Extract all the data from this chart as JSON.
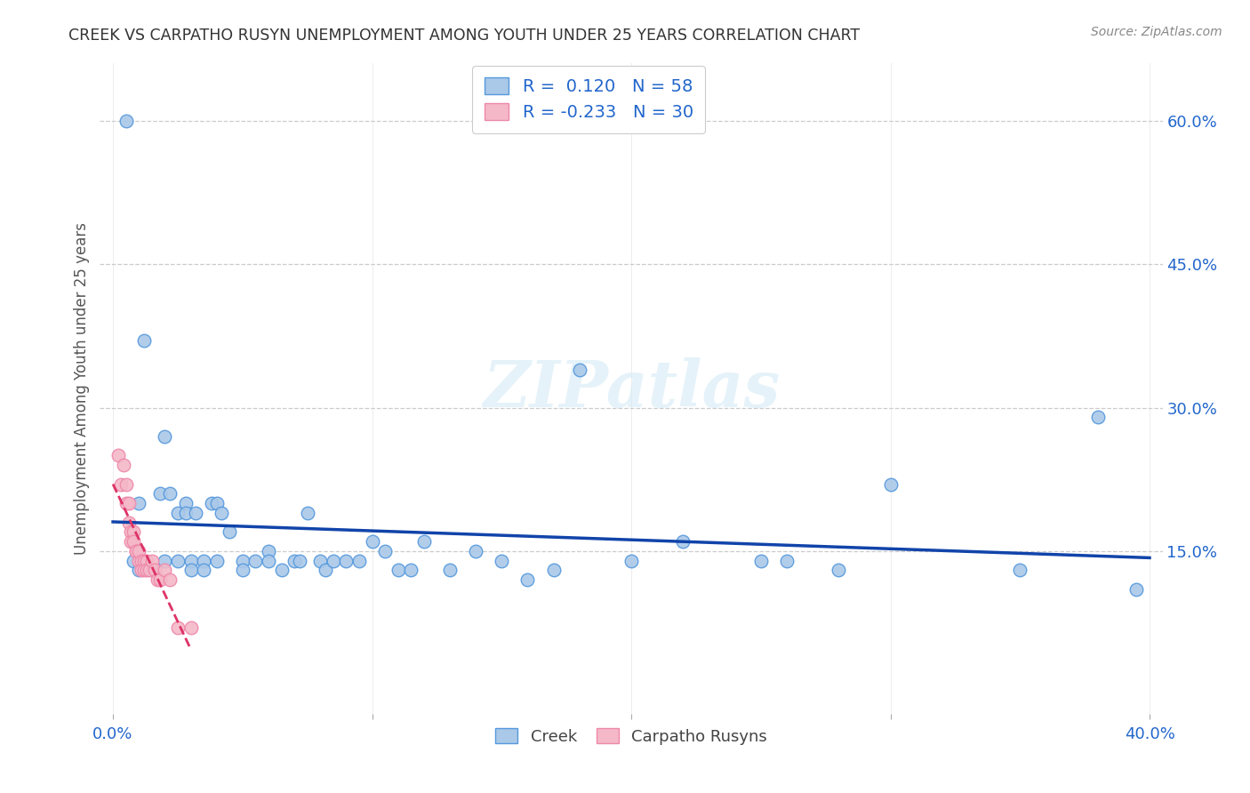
{
  "title": "CREEK VS CARPATHO RUSYN UNEMPLOYMENT AMONG YOUTH UNDER 25 YEARS CORRELATION CHART",
  "source": "Source: ZipAtlas.com",
  "ylabel": "Unemployment Among Youth under 25 years",
  "xlim": [
    -0.005,
    0.405
  ],
  "ylim": [
    -0.02,
    0.66
  ],
  "x_ticks": [
    0.0,
    0.1,
    0.2,
    0.3,
    0.4
  ],
  "x_tick_labels": [
    "0.0%",
    "",
    "",
    "",
    "40.0%"
  ],
  "y_tick_labels_right": [
    "60.0%",
    "45.0%",
    "30.0%",
    "15.0%"
  ],
  "y_ticks_right": [
    0.6,
    0.45,
    0.3,
    0.15
  ],
  "creek_color": "#aac8e8",
  "creek_edge_color": "#5599dd",
  "creek_line_color": "#1144aa",
  "rusyn_color": "#f4b8c8",
  "rusyn_edge_color": "#ee88aa",
  "rusyn_line_color": "#dd3366",
  "legend_label_creek": "R =  0.120   N = 58",
  "legend_label_rusyn": "R = -0.233   N = 30",
  "watermark": "ZIPatlas",
  "background_color": "#ffffff",
  "grid_color": "#cccccc",
  "creek_x": [
    0.005,
    0.008,
    0.01,
    0.01,
    0.012,
    0.015,
    0.018,
    0.02,
    0.02,
    0.022,
    0.025,
    0.025,
    0.028,
    0.028,
    0.03,
    0.03,
    0.032,
    0.035,
    0.035,
    0.038,
    0.04,
    0.04,
    0.042,
    0.045,
    0.05,
    0.05,
    0.055,
    0.06,
    0.06,
    0.065,
    0.07,
    0.072,
    0.075,
    0.08,
    0.082,
    0.085,
    0.09,
    0.095,
    0.1,
    0.105,
    0.11,
    0.115,
    0.12,
    0.13,
    0.14,
    0.15,
    0.16,
    0.17,
    0.18,
    0.2,
    0.22,
    0.25,
    0.26,
    0.28,
    0.3,
    0.35,
    0.38,
    0.395
  ],
  "creek_y": [
    0.6,
    0.14,
    0.2,
    0.13,
    0.37,
    0.13,
    0.21,
    0.27,
    0.14,
    0.21,
    0.14,
    0.19,
    0.2,
    0.19,
    0.14,
    0.13,
    0.19,
    0.14,
    0.13,
    0.2,
    0.2,
    0.14,
    0.19,
    0.17,
    0.14,
    0.13,
    0.14,
    0.15,
    0.14,
    0.13,
    0.14,
    0.14,
    0.19,
    0.14,
    0.13,
    0.14,
    0.14,
    0.14,
    0.16,
    0.15,
    0.13,
    0.13,
    0.16,
    0.13,
    0.15,
    0.14,
    0.12,
    0.13,
    0.34,
    0.14,
    0.16,
    0.14,
    0.14,
    0.13,
    0.22,
    0.13,
    0.29,
    0.11
  ],
  "rusyn_x": [
    0.002,
    0.003,
    0.004,
    0.005,
    0.005,
    0.006,
    0.006,
    0.007,
    0.007,
    0.008,
    0.008,
    0.009,
    0.009,
    0.01,
    0.01,
    0.011,
    0.011,
    0.012,
    0.012,
    0.013,
    0.013,
    0.014,
    0.015,
    0.016,
    0.017,
    0.018,
    0.02,
    0.022,
    0.025,
    0.03
  ],
  "rusyn_y": [
    0.25,
    0.22,
    0.24,
    0.22,
    0.2,
    0.2,
    0.18,
    0.17,
    0.16,
    0.17,
    0.16,
    0.15,
    0.15,
    0.14,
    0.15,
    0.14,
    0.13,
    0.14,
    0.13,
    0.14,
    0.13,
    0.13,
    0.14,
    0.13,
    0.12,
    0.12,
    0.13,
    0.12,
    0.07,
    0.07
  ]
}
